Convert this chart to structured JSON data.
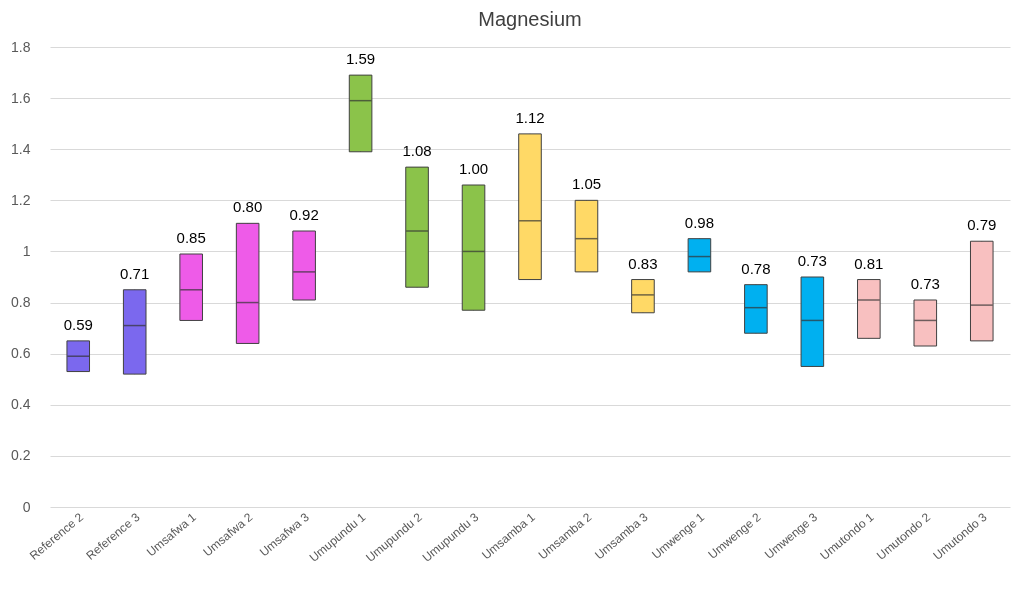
{
  "chart_data": {
    "type": "box",
    "title": "Magnesium",
    "categories": [
      "Reference 2",
      "Reference 3",
      "Umsafwa 1",
      "Umsafwa 2",
      "Umsafwa 3",
      "Umupundu 1",
      "Umupundu 2",
      "Umupundu 3",
      "Umsamba 1",
      "Umsamba 2",
      "Umsamba 3",
      "Umwenge 1",
      "Umwenge 2",
      "Umwenge 3",
      "Umutondo 1",
      "Umutondo 2",
      "Umutondo 3"
    ],
    "boxes": [
      {
        "low": 0.53,
        "q1": 0.53,
        "median": 0.59,
        "q3": 0.65,
        "high": 0.65
      },
      {
        "low": 0.52,
        "q1": 0.52,
        "median": 0.71,
        "q3": 0.85,
        "high": 0.85
      },
      {
        "low": 0.73,
        "q1": 0.73,
        "median": 0.85,
        "q3": 0.99,
        "high": 0.99
      },
      {
        "low": 0.64,
        "q1": 0.64,
        "median": 0.8,
        "q3": 1.11,
        "high": 1.11
      },
      {
        "low": 0.81,
        "q1": 0.81,
        "median": 0.92,
        "q3": 1.08,
        "high": 1.08
      },
      {
        "low": 1.39,
        "q1": 1.39,
        "median": 1.59,
        "q3": 1.69,
        "high": 1.69
      },
      {
        "low": 0.86,
        "q1": 0.86,
        "median": 1.08,
        "q3": 1.33,
        "high": 1.33
      },
      {
        "low": 0.77,
        "q1": 0.77,
        "median": 1.0,
        "q3": 1.26,
        "high": 1.26
      },
      {
        "low": 0.89,
        "q1": 0.89,
        "median": 1.12,
        "q3": 1.46,
        "high": 1.46
      },
      {
        "low": 0.92,
        "q1": 0.92,
        "median": 1.05,
        "q3": 1.2,
        "high": 1.2
      },
      {
        "low": 0.76,
        "q1": 0.76,
        "median": 0.83,
        "q3": 0.89,
        "high": 0.89
      },
      {
        "low": 0.92,
        "q1": 0.92,
        "median": 0.98,
        "q3": 1.05,
        "high": 1.05
      },
      {
        "low": 0.68,
        "q1": 0.68,
        "median": 0.78,
        "q3": 0.87,
        "high": 0.87
      },
      {
        "low": 0.55,
        "q1": 0.55,
        "median": 0.73,
        "q3": 0.9,
        "high": 0.9
      },
      {
        "low": 0.66,
        "q1": 0.66,
        "median": 0.81,
        "q3": 0.89,
        "high": 0.89
      },
      {
        "low": 0.63,
        "q1": 0.63,
        "median": 0.73,
        "q3": 0.81,
        "high": 0.81
      },
      {
        "low": 0.65,
        "q1": 0.65,
        "median": 0.79,
        "q3": 1.04,
        "high": 1.04
      }
    ],
    "colors": [
      "#7b68ee",
      "#7b68ee",
      "#ee5be8",
      "#ee5be8",
      "#ee5be8",
      "#8bc34a",
      "#8bc34a",
      "#8bc34a",
      "#ffd966",
      "#ffd966",
      "#ffd966",
      "#00b0f0",
      "#00b0f0",
      "#00b0f0",
      "#f8c0c0",
      "#f8c0c0",
      "#f8c0c0"
    ],
    "ylim": [
      0,
      1.8
    ],
    "yticks": [
      0,
      0.2,
      0.4,
      0.6,
      0.8,
      1,
      1.2,
      1.4,
      1.6,
      1.8
    ],
    "value_labels": [
      "0.59",
      "0.71",
      "0.85",
      "0.80",
      "0.92",
      "1.59",
      "1.08",
      "1.00",
      "1.12",
      "1.05",
      "0.83",
      "0.98",
      "0.78",
      "0.73",
      "0.81",
      "0.73",
      "0.79"
    ],
    "grid": true
  }
}
